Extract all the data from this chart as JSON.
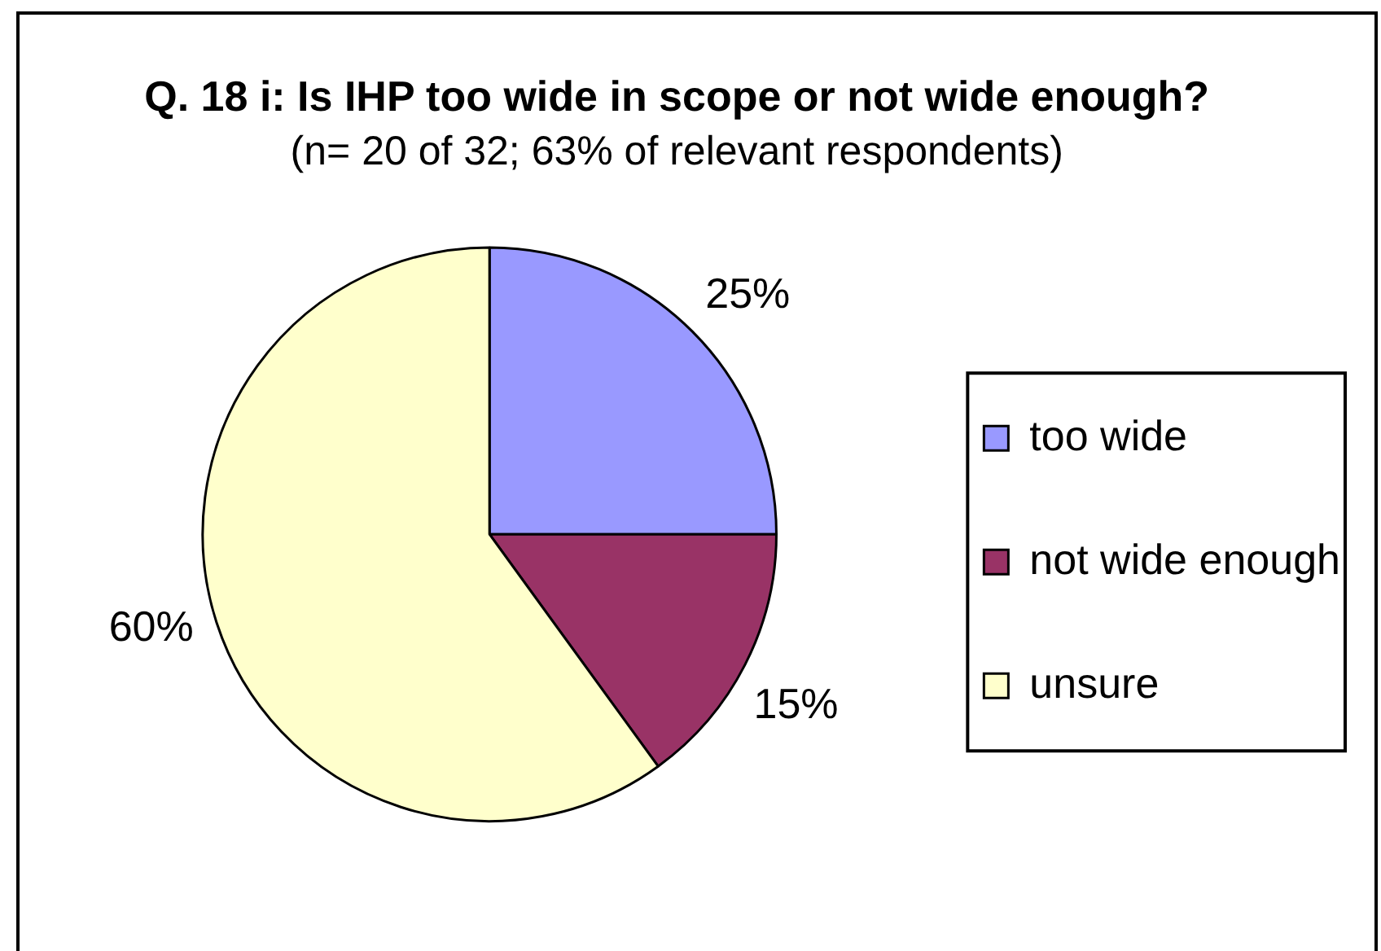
{
  "chart_data": {
    "type": "pie",
    "title": "Q. 18 i: Is IHP too wide in scope or not wide enough?",
    "subtitle": "(n= 20 of 32; 63% of relevant respondents)",
    "categories": [
      "too wide",
      "not wide enough",
      "unsure"
    ],
    "values": [
      25,
      15,
      60
    ],
    "colors": [
      "#9999ff",
      "#993366",
      "#ffffcc"
    ],
    "value_labels": [
      "25%",
      "15%",
      "60%"
    ],
    "legend": "right"
  }
}
